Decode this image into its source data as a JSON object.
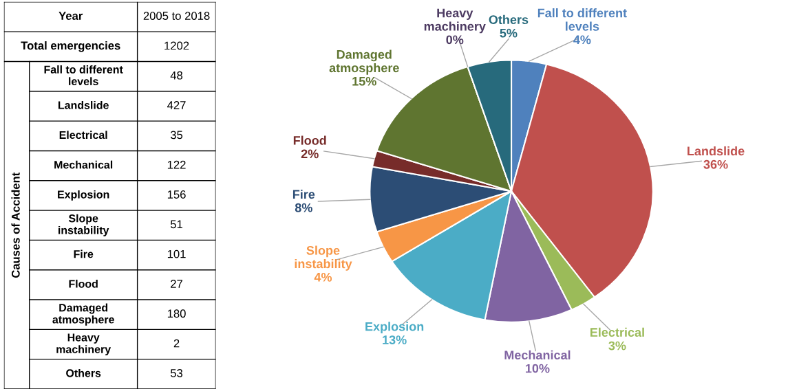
{
  "chart_data": [
    {
      "type": "other",
      "categories": [
        "Fall to different levels",
        "Landslide",
        "Electrical",
        "Mechanical",
        "Explosion",
        "Slope instability",
        "Fire",
        "Flood",
        "Damaged atmosphere",
        "Heavy machinery",
        "Others"
      ],
      "values": [
        48,
        427,
        35,
        122,
        156,
        51,
        101,
        27,
        180,
        2,
        53
      ],
      "data_labels": true,
      "annotations": [
        "Year",
        "2005 to 2018",
        "Total emergencies",
        "1202",
        "Causes of Accident"
      ]
    },
    {
      "type": "pie",
      "categories": [
        "Fall to different levels",
        "Landslide",
        "Electrical",
        "Mechanical",
        "Explosion",
        "Slope instability",
        "Fire",
        "Flood",
        "Damaged atmosphere",
        "Heavy machinery",
        "Others"
      ],
      "values": [
        4,
        36,
        3,
        10,
        13,
        4,
        8,
        2,
        15,
        0,
        5
      ],
      "colors": [
        "#4f81bd",
        "#c0504d",
        "#9bbb59",
        "#8064a2",
        "#4bacc6",
        "#f79646",
        "#2c4d75",
        "#772c2a",
        "#5f7530",
        "#4d3b62",
        "#276a7c"
      ],
      "value_labels": [
        "4%",
        "36%",
        "3%",
        "10%",
        "13%",
        "4%",
        "8%",
        "2%",
        "15%",
        "0%",
        "5%"
      ],
      "legend": false
    }
  ]
}
